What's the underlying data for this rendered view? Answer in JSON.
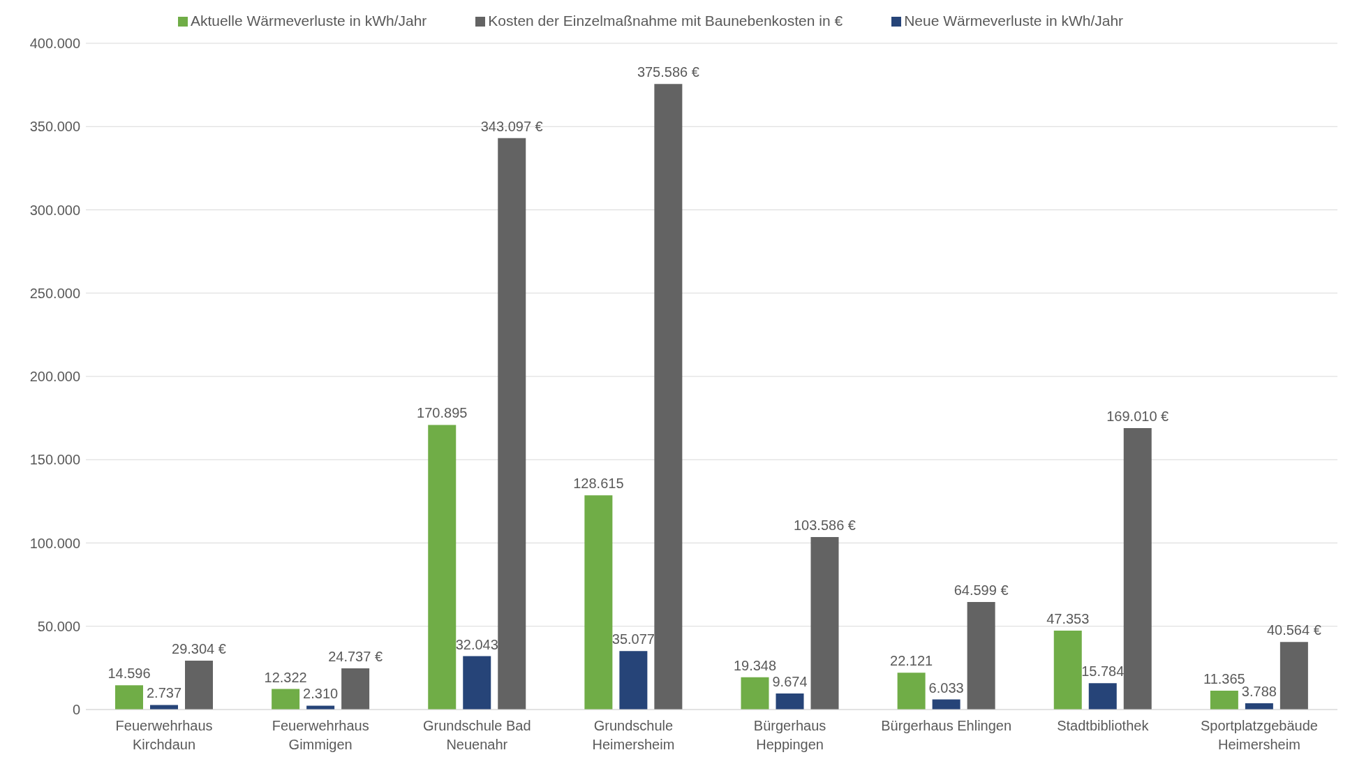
{
  "chart_data": {
    "type": "bar",
    "categories": [
      "Feuerwehrhaus\nKirchdaun",
      "Feuerwehrhaus\nGimmigen",
      "Grundschule Bad\nNeuenahr",
      "Grundschule\nHeimersheim",
      "Bürgerhaus\nHeppingen",
      "Bürgerhaus Ehlingen",
      "Stadtbibliothek",
      "Sportplatzgebäude\nHeimersheim"
    ],
    "series": [
      {
        "name": "Aktuelle Wärmeverluste in kWh/Jahr",
        "color": "#70ad47",
        "values": [
          14596,
          12322,
          170895,
          128615,
          19348,
          22121,
          47353,
          11365
        ],
        "value_labels": [
          "14.596",
          "12.322",
          "170.895",
          "128.615",
          "19.348",
          "22.121",
          "47.353",
          "11.365"
        ]
      },
      {
        "name": "Neue Wärmeverluste in kWh/Jahr",
        "color": "#264478",
        "values": [
          2737,
          2310,
          32043,
          35077,
          9674,
          6033,
          15784,
          3788
        ],
        "value_labels": [
          "2.737",
          "2.310",
          "32.043",
          "35.077",
          "9.674",
          "6.033",
          "15.784",
          "3.788"
        ]
      },
      {
        "name": "Kosten der Einzelmaßnahme mit Baunebenkosten in €",
        "color": "#636363",
        "values": [
          29304,
          24737,
          343097,
          375586,
          103586,
          64599,
          169010,
          40564
        ],
        "value_labels": [
          "29.304 €",
          "24.737 €",
          "343.097 €",
          "375.586 €",
          "103.586 €",
          "64.599 €",
          "169.010 €",
          "40.564 €"
        ]
      }
    ],
    "ylim": [
      0,
      400000
    ],
    "yticks": [
      0,
      {
        "value": 50000,
        "label": "50.000"
      },
      {
        "value": 100000,
        "label": "100.000"
      },
      {
        "value": 150000,
        "label": "150.000"
      },
      {
        "value": 200000,
        "label": "200.000"
      },
      {
        "value": 250000,
        "label": "250.000"
      },
      {
        "value": 300000,
        "label": "300.000"
      },
      {
        "value": 350000,
        "label": "350.000"
      },
      {
        "value": 400000,
        "label": "400.000"
      }
    ],
    "grid": "y",
    "legend": "top"
  }
}
